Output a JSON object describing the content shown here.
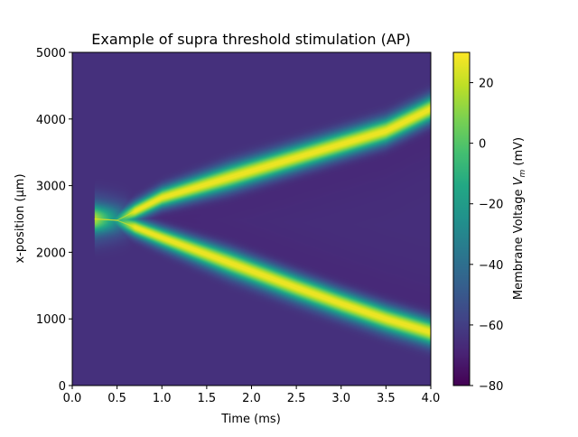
{
  "chart_data": {
    "type": "heatmap",
    "title": "Example of supra threshold stimulation (AP)",
    "xlabel": "Time (ms)",
    "ylabel": "x-position (μm)",
    "xlim": [
      0.0,
      4.0
    ],
    "ylim": [
      0,
      5000
    ],
    "xticks": [
      0.0,
      0.5,
      1.0,
      1.5,
      2.0,
      2.5,
      3.0,
      3.5,
      4.0
    ],
    "xtick_labels": [
      "0.0",
      "0.5",
      "1.0",
      "1.5",
      "2.0",
      "2.5",
      "3.0",
      "3.5",
      "4.0"
    ],
    "yticks": [
      0,
      1000,
      2000,
      3000,
      4000,
      5000
    ],
    "ytick_labels": [
      "0",
      "1000",
      "2000",
      "3000",
      "4000",
      "5000"
    ],
    "colorbar": {
      "label_main": "Membrane Voltage ",
      "label_var": "V",
      "label_sub": "m",
      "label_unit": " (mV)",
      "range": [
        -80,
        30
      ],
      "ticks": [
        20,
        0,
        -20,
        -40,
        -60,
        -80
      ],
      "tick_labels": [
        "20",
        "0",
        "−20",
        "−40",
        "−60",
        "−80"
      ],
      "colormap": "viridis"
    },
    "series": [
      {
        "x": [
          0.25,
          0.5,
          1.0,
          1.5,
          2.0,
          2.5,
          3.0,
          3.5,
          4.0
        ],
        "y": [
          2500,
          2480,
          2820,
          3020,
          3220,
          3420,
          3620,
          3820,
          4150
        ]
      },
      {
        "x": [
          0.25,
          0.5,
          1.0,
          1.5,
          2.0,
          2.5,
          3.0,
          3.5,
          4.0
        ],
        "y": [
          2500,
          2480,
          2220,
          1970,
          1720,
          1470,
          1230,
          1000,
          800
        ]
      }
    ],
    "resting_potential_mV": -65,
    "peak_potential_mV": 28
  }
}
